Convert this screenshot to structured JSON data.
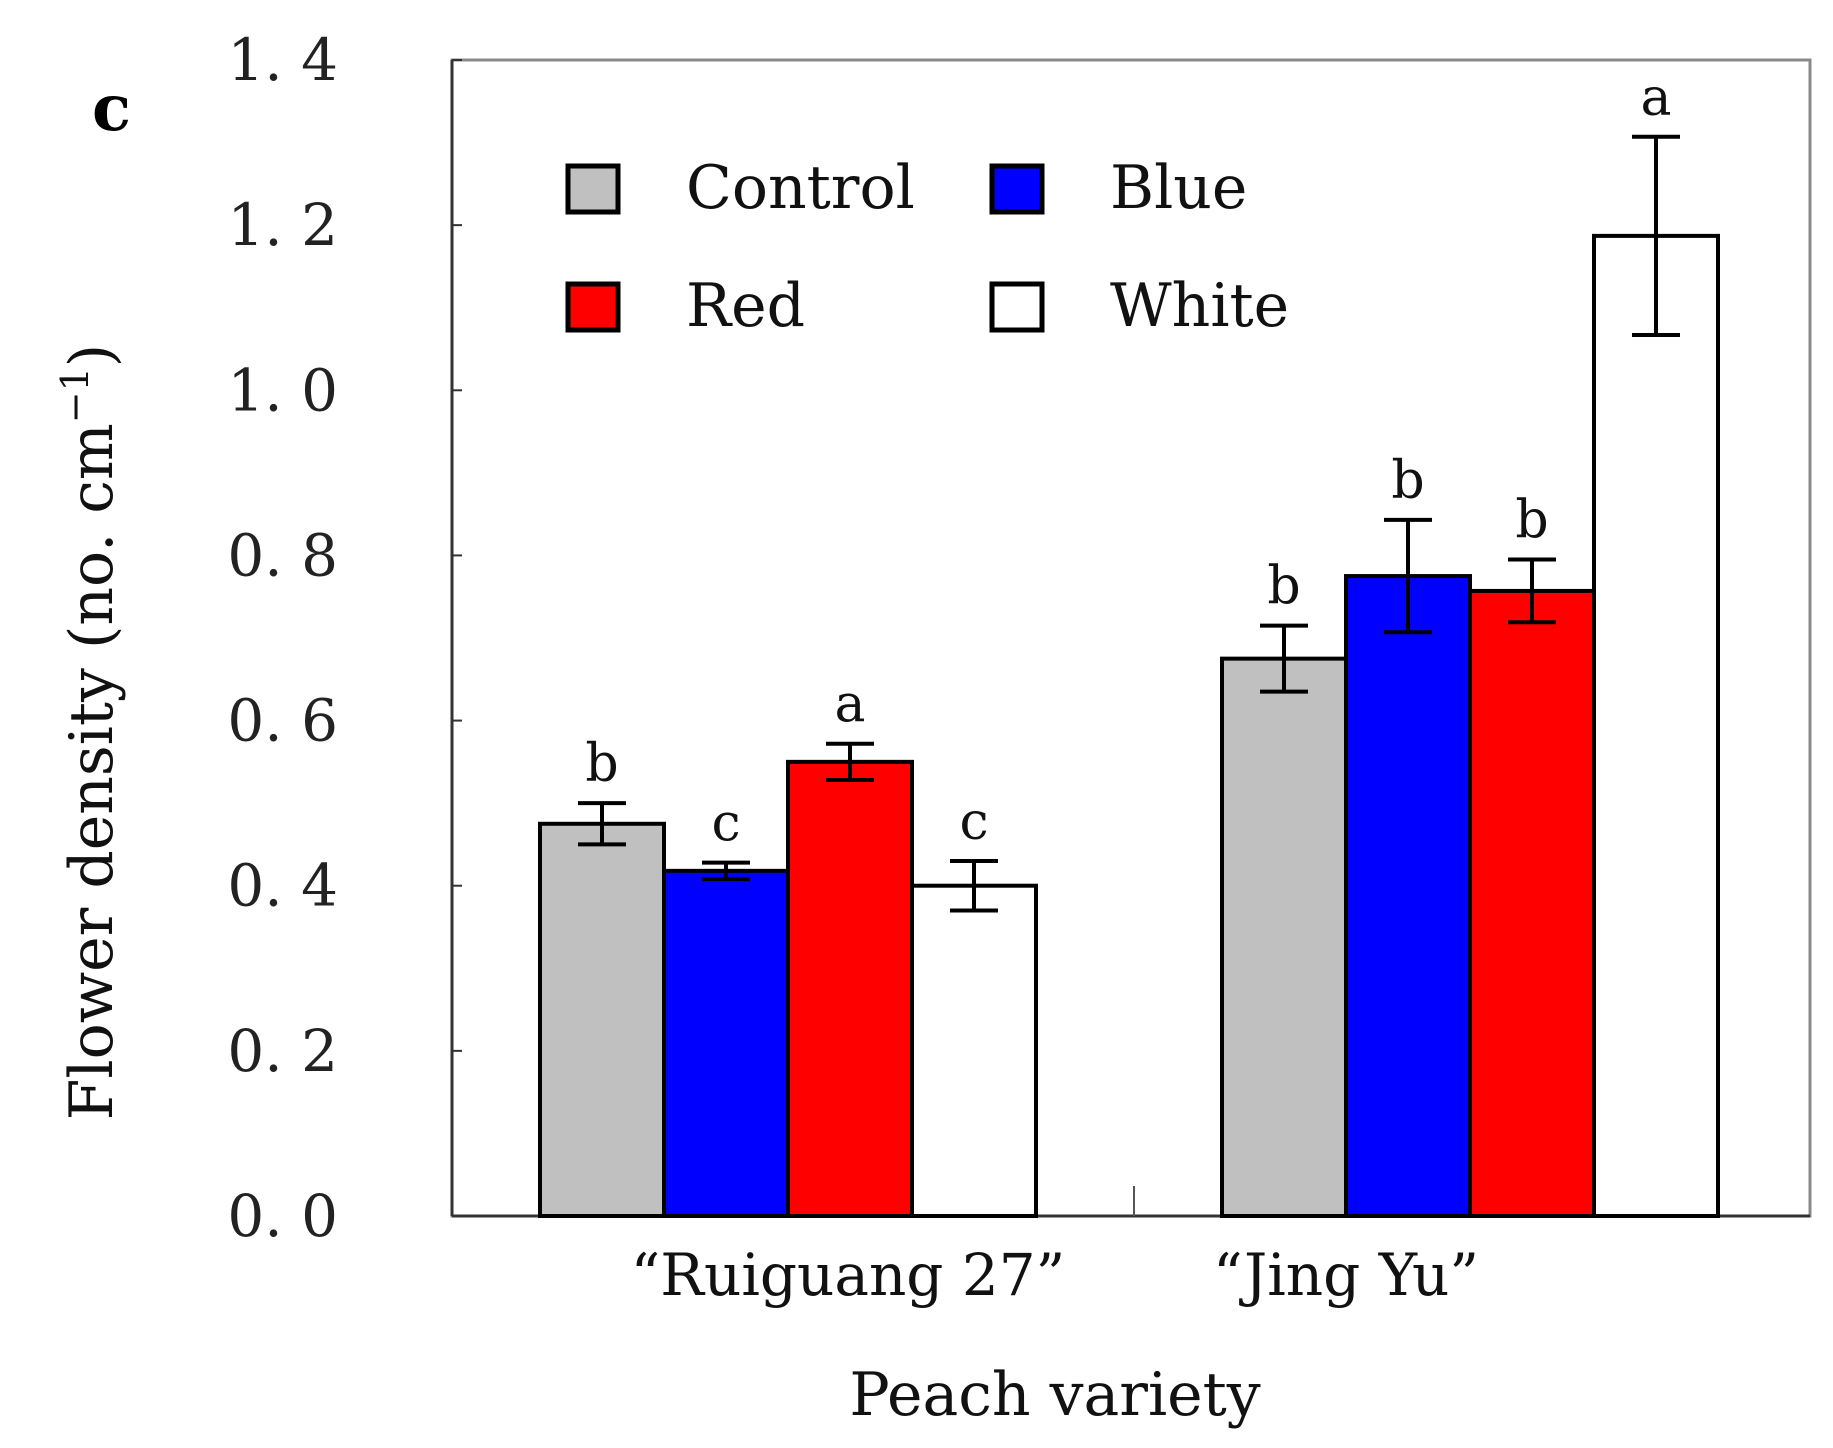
{
  "chart_data": {
    "type": "bar",
    "panel_label": "c",
    "xlabel": "Peach variety",
    "ylabel": "Flower density (no. cm",
    "ylabel_superscript": "−1",
    "ylabel_close": ")",
    "ylim": [
      0.0,
      1.4
    ],
    "yticks": [
      "0. 0",
      "0. 2",
      "0. 4",
      "0. 6",
      "0. 8",
      "1. 0",
      "1. 2",
      "1. 4"
    ],
    "ytick_values": [
      0.0,
      0.2,
      0.4,
      0.6,
      0.8,
      1.0,
      1.2,
      1.4
    ],
    "categories": [
      "“Ruiguang 27”",
      "“Jing Yu”"
    ],
    "series": [
      {
        "name": "Control",
        "color": "#c0c0c0",
        "values": [
          0.475,
          0.675
        ],
        "errors": [
          0.025,
          0.04
        ],
        "letters": [
          "b",
          "b"
        ]
      },
      {
        "name": "Blue",
        "color": "#0000ff",
        "values": [
          0.418,
          0.775
        ],
        "errors": [
          0.01,
          0.068
        ],
        "letters": [
          "c",
          "b"
        ]
      },
      {
        "name": "Red",
        "color": "#ff0000",
        "values": [
          0.55,
          0.757
        ],
        "errors": [
          0.022,
          0.038
        ],
        "letters": [
          "a",
          "b"
        ]
      },
      {
        "name": "White",
        "color": "#ffffff",
        "values": [
          0.4,
          1.187
        ],
        "errors": [
          0.03,
          0.12
        ],
        "letters": [
          "c",
          "a"
        ]
      }
    ],
    "grid": false,
    "legend_position": "top-left",
    "legend_columns": 2
  }
}
